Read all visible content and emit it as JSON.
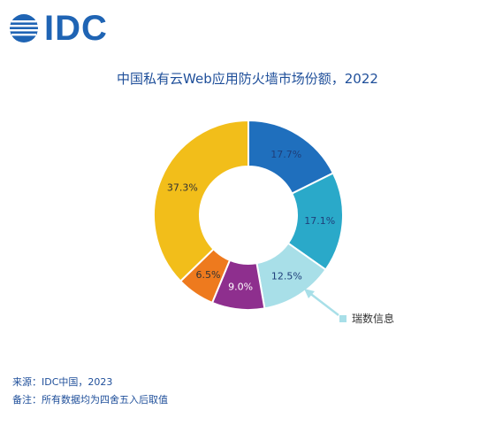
{
  "logo": {
    "text": "IDC"
  },
  "chart_data": {
    "type": "pie",
    "title": "中国私有云Web应用防火墙市场份额，2022",
    "slices": [
      {
        "label": "17.7%",
        "value": 17.7,
        "color": "#1f6fbd",
        "text_color": "#1f3f7a"
      },
      {
        "label": "17.1%",
        "value": 17.1,
        "color": "#2aa9c9",
        "text_color": "#1f3f7a"
      },
      {
        "label": "12.5%",
        "value": 12.5,
        "color": "#a8dfe8",
        "text_color": "#1f3f7a",
        "highlight": true
      },
      {
        "label": "9.0%",
        "value": 9.0,
        "color": "#8e2f8e",
        "text_color": "#ffffff"
      },
      {
        "label": "6.5%",
        "value": 6.5,
        "color": "#ee7a1e",
        "text_color": "#333333"
      },
      {
        "label": "37.3%",
        "value": 37.3,
        "color": "#f2be1a",
        "text_color": "#333333"
      }
    ],
    "callout": {
      "label": "瑞数信息",
      "color": "#a8dfe8"
    }
  },
  "footnotes": {
    "source": "来源：IDC中国，2023",
    "note": "备注：所有数据均为四舍五入后取值"
  }
}
